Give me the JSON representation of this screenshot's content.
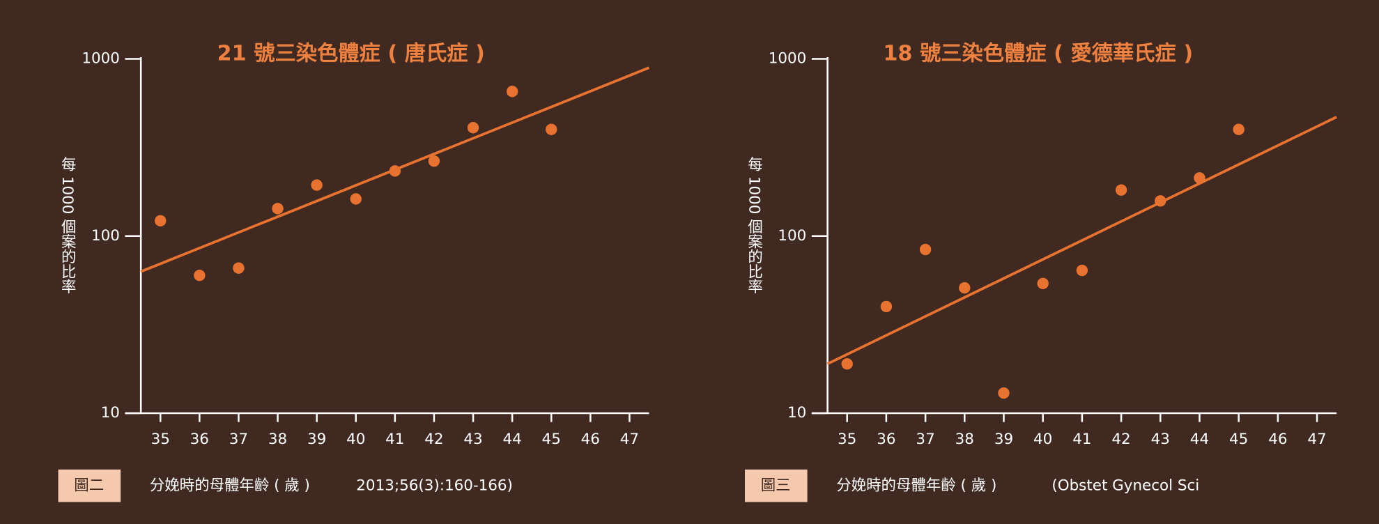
{
  "chart_data": [
    {
      "type": "scatter",
      "title": "21 號三染色體症 ( 唐氏症 )",
      "ylabel": "每 1000 個案的比率",
      "figure_label": "圖二",
      "xlabel": "分娩時的母體年齡 ( 歲 )",
      "source": "2013;56(3):160-166)",
      "x": [
        35,
        36,
        37,
        38,
        39,
        40,
        41,
        42,
        43,
        44,
        45
      ],
      "values": [
        122,
        60,
        66,
        143,
        194,
        162,
        233,
        265,
        409,
        655,
        400
      ],
      "color": "#e8722f",
      "trendline": {
        "x": [
          34.5,
          47.5
        ],
        "values": [
          63,
          892
        ]
      },
      "xlim": [
        34.5,
        47.5
      ],
      "xticks": [
        35,
        36,
        37,
        38,
        39,
        40,
        41,
        42,
        43,
        44,
        45,
        46,
        47
      ],
      "ylim": [
        10,
        1000
      ],
      "yticks": [
        10,
        100,
        1000
      ],
      "log_y": true
    },
    {
      "type": "scatter",
      "title": "18 號三染色體症 ( 愛德華氏症 )",
      "ylabel": "每 1000 個案的比率",
      "figure_label": "圖三",
      "xlabel": "分娩時的母體年齡 ( 歲 )",
      "source": "(Obstet Gynecol Sci",
      "x": [
        35,
        36,
        37,
        38,
        39,
        40,
        41,
        42,
        43,
        44,
        45
      ],
      "values": [
        19,
        40,
        84,
        51,
        13,
        54,
        64,
        182,
        158,
        213,
        400
      ],
      "color": "#e8722f",
      "trendline": {
        "x": [
          34.5,
          47.5
        ],
        "values": [
          19,
          470
        ]
      },
      "xlim": [
        34.5,
        47.5
      ],
      "xticks": [
        35,
        36,
        37,
        38,
        39,
        40,
        41,
        42,
        43,
        44,
        45,
        46,
        47
      ],
      "ylim": [
        10,
        1000
      ],
      "yticks": [
        10,
        100,
        1000
      ],
      "log_y": true
    }
  ]
}
